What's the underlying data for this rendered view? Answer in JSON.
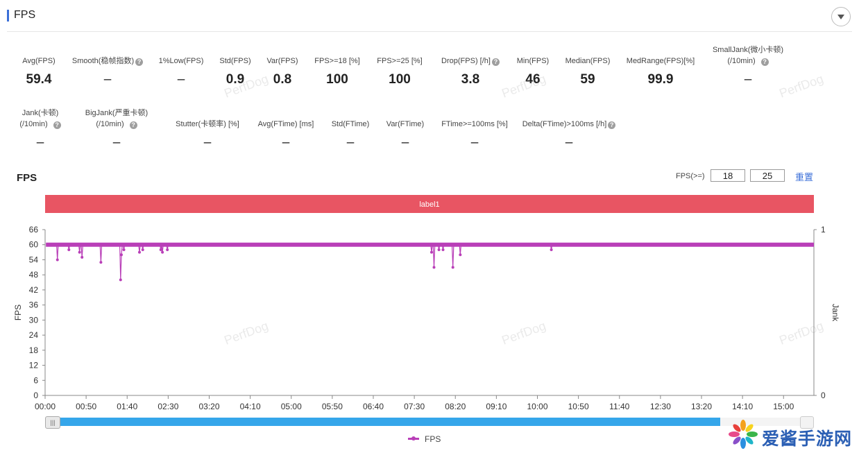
{
  "header": {
    "title": "FPS"
  },
  "metrics_row1": [
    {
      "label": "Avg(FPS)",
      "value": "59.4",
      "help": false
    },
    {
      "label": "Smooth(稳帧指数)",
      "value": "–",
      "help": true
    },
    {
      "label": "1%Low(FPS)",
      "value": "–",
      "help": false
    },
    {
      "label": "Std(FPS)",
      "value": "0.9",
      "help": false
    },
    {
      "label": "Var(FPS)",
      "value": "0.8",
      "help": false
    },
    {
      "label": "FPS>=18 [%]",
      "value": "100",
      "help": false
    },
    {
      "label": "FPS>=25 [%]",
      "value": "100",
      "help": false
    },
    {
      "label": "Drop(FPS) [/h]",
      "value": "3.8",
      "help": true
    },
    {
      "label": "Min(FPS)",
      "value": "46",
      "help": false
    },
    {
      "label": "Median(FPS)",
      "value": "59",
      "help": false
    },
    {
      "label": "MedRange(FPS)[%]",
      "value": "99.9",
      "help": false
    },
    {
      "label": "SmallJank(微小卡顿)",
      "label2": "(/10min)",
      "value": "–",
      "help": true
    }
  ],
  "metrics_row2": [
    {
      "label": "Jank(卡顿)",
      "label2": "(/10min)",
      "value": "–",
      "help": true
    },
    {
      "label": "BigJank(严重卡顿)",
      "label2": "(/10min)",
      "value": "–",
      "help": true
    },
    {
      "label": "Stutter(卡顿率) [%]",
      "value": "–",
      "help": false
    },
    {
      "label": "Avg(FTime) [ms]",
      "value": "–",
      "help": false
    },
    {
      "label": "Std(FTime)",
      "value": "–",
      "help": false
    },
    {
      "label": "Var(FTime)",
      "value": "–",
      "help": false
    },
    {
      "label": "FTime>=100ms [%]",
      "value": "–",
      "help": false
    },
    {
      "label": "Delta(FTime)>100ms [/h]",
      "value": "–",
      "help": true
    }
  ],
  "watermark": "PerfDog",
  "fps_threshold": {
    "label": "FPS(>=)",
    "value1": "18",
    "value2": "25",
    "reset_label": "重置"
  },
  "label_band": "label1",
  "chart_data": {
    "type": "line",
    "title": "FPS",
    "ylabel": "FPS",
    "y2label": "Jank",
    "ylim": [
      0,
      66
    ],
    "y2lim": [
      0,
      1
    ],
    "yticks": [
      "66",
      "60",
      "54",
      "48",
      "42",
      "36",
      "30",
      "24",
      "18",
      "12",
      "6",
      "0"
    ],
    "y2ticks": [
      "1",
      "0"
    ],
    "xticks": [
      "00:00",
      "00:50",
      "01:40",
      "02:30",
      "03:20",
      "04:10",
      "05:00",
      "05:50",
      "06:40",
      "07:30",
      "08:20",
      "09:10",
      "10:00",
      "10:50",
      "11:40",
      "12:30",
      "13:20",
      "14:10",
      "15:00"
    ],
    "x_unit_seconds": [
      0,
      50,
      100,
      150,
      200,
      250,
      300,
      350,
      400,
      450,
      500,
      550,
      600,
      650,
      700,
      750,
      800,
      850,
      900
    ],
    "xlim": [
      0,
      937
    ],
    "baseline_fps": 60,
    "series": [
      {
        "name": "FPS",
        "color": "#b93fb8",
        "dips": [
          {
            "x": 15,
            "y": 54
          },
          {
            "x": 29,
            "y": 58
          },
          {
            "x": 42,
            "y": 57
          },
          {
            "x": 45,
            "y": 55
          },
          {
            "x": 68,
            "y": 53
          },
          {
            "x": 92,
            "y": 46
          },
          {
            "x": 93,
            "y": 56
          },
          {
            "x": 96,
            "y": 58
          },
          {
            "x": 115,
            "y": 57
          },
          {
            "x": 119,
            "y": 58
          },
          {
            "x": 141,
            "y": 58
          },
          {
            "x": 143,
            "y": 57
          },
          {
            "x": 149,
            "y": 58
          },
          {
            "x": 471,
            "y": 57
          },
          {
            "x": 474,
            "y": 51
          },
          {
            "x": 480,
            "y": 58
          },
          {
            "x": 485,
            "y": 58
          },
          {
            "x": 497,
            "y": 51
          },
          {
            "x": 506,
            "y": 56
          },
          {
            "x": 617,
            "y": 58
          }
        ]
      }
    ],
    "legend": "bottom-center",
    "grid": false
  },
  "legend_label": "FPS",
  "logo_text": "爱酱手游网"
}
